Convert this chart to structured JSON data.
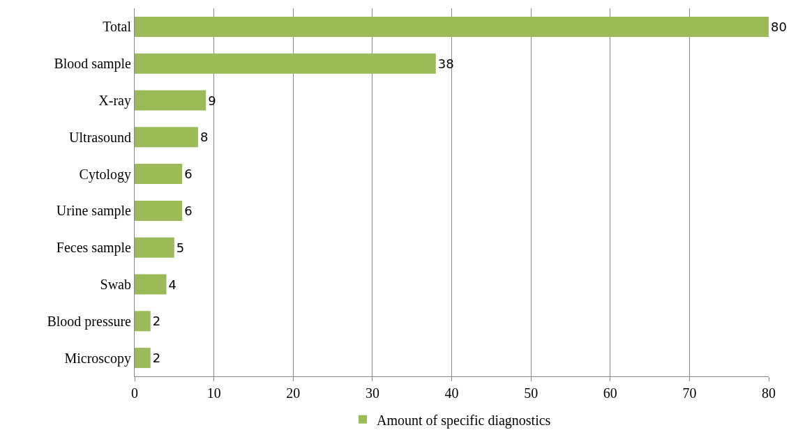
{
  "chart_data": {
    "type": "bar",
    "orientation": "horizontal",
    "categories": [
      "Total",
      "Blood sample",
      "X-ray",
      "Ultrasound",
      "Cytology",
      "Urine sample",
      "Feces sample",
      "Swab",
      "Blood pressure",
      "Microscopy"
    ],
    "series": [
      {
        "name": "Amount of specific diagnostics",
        "color": "#9bbb59",
        "values": [
          80,
          38,
          9,
          8,
          6,
          6,
          5,
          4,
          2,
          2
        ]
      }
    ],
    "xlim": [
      0,
      80
    ],
    "xticks": [
      0,
      10,
      20,
      30,
      40,
      50,
      60,
      70,
      80
    ],
    "grid": "x",
    "legend": "bottom",
    "data_labels": true
  }
}
